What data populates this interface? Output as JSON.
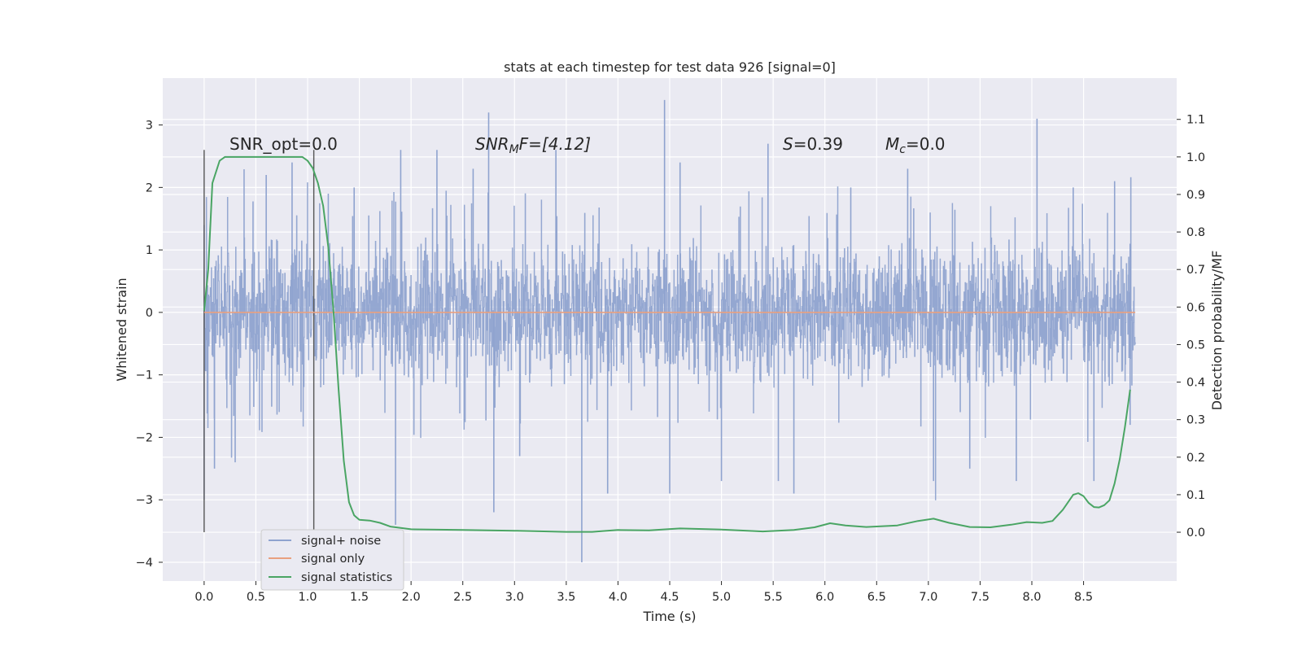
{
  "chart_data": {
    "type": "line",
    "title": "stats at each timestep for test data 926 [signal=0]",
    "xlabel": "Time (s)",
    "ylabel": "Whitened strain",
    "y2label": "Detection probability/MF",
    "xlim": [
      -0.4,
      9.4
    ],
    "ylim": [
      -4.3,
      3.75
    ],
    "y2lim": [
      -0.13,
      1.21
    ],
    "x_ticks": [
      "0.0",
      "0.5",
      "1.0",
      "1.5",
      "2.0",
      "2.5",
      "3.0",
      "3.5",
      "4.0",
      "4.5",
      "5.0",
      "5.5",
      "6.0",
      "6.5",
      "7.0",
      "7.5",
      "8.0",
      "8.5"
    ],
    "y_ticks": [
      "3",
      "2",
      "1",
      "0",
      "−1",
      "−2",
      "−3",
      "−4"
    ],
    "y2_ticks": [
      "1.1",
      "1.0",
      "0.9",
      "0.8",
      "0.7",
      "0.6",
      "0.5",
      "0.4",
      "0.3",
      "0.2",
      "0.1",
      "0.0"
    ],
    "grid": true,
    "legend_position": "lower-left",
    "annotations": {
      "snr_opt": "SNR_opt=0.0",
      "snr_mf_main": "SNR",
      "snr_mf_sub": "M",
      "snr_mf_tail": "F=[4.12]",
      "s_label": "S",
      "s_value": "=0.39",
      "mc_main": "M",
      "mc_sub": "c",
      "mc_value": "=0.0"
    },
    "vertical_markers": [
      0.0,
      1.06
    ],
    "series": [
      {
        "name": "signal+ noise",
        "color": "#8fa3cf",
        "style": "dense noise trace, roughly ±1 with excursions between about −4 and 3.4",
        "samples": [
          [
            0.0,
            1.4
          ],
          [
            0.0,
            -3.0
          ],
          [
            0.1,
            -2.5
          ],
          [
            0.3,
            -2.4
          ],
          [
            0.6,
            2.2
          ],
          [
            0.85,
            2.4
          ],
          [
            1.2,
            1.9
          ],
          [
            1.45,
            2.0
          ],
          [
            1.85,
            -3.4
          ],
          [
            1.9,
            2.6
          ],
          [
            2.25,
            2.6
          ],
          [
            2.6,
            2.3
          ],
          [
            2.75,
            3.2
          ],
          [
            2.8,
            -3.2
          ],
          [
            3.05,
            -2.3
          ],
          [
            3.4,
            2.6
          ],
          [
            3.65,
            -4.0
          ],
          [
            3.9,
            -2.9
          ],
          [
            4.45,
            3.4
          ],
          [
            4.5,
            -2.9
          ],
          [
            4.6,
            2.4
          ],
          [
            5.0,
            -2.7
          ],
          [
            5.45,
            2.7
          ],
          [
            5.55,
            -2.7
          ],
          [
            5.7,
            -2.9
          ],
          [
            6.25,
            2.0
          ],
          [
            6.8,
            2.3
          ],
          [
            7.05,
            -2.7
          ],
          [
            7.4,
            -2.5
          ],
          [
            7.85,
            -2.7
          ],
          [
            8.05,
            3.1
          ],
          [
            8.4,
            2.0
          ],
          [
            8.6,
            -2.7
          ],
          [
            8.8,
            2.1
          ],
          [
            8.95,
            1.1
          ],
          [
            8.95,
            -1.8
          ]
        ]
      },
      {
        "name": "signal only",
        "color": "#e9a07f",
        "points": [
          [
            0.0,
            0.0
          ],
          [
            9.0,
            0.0
          ]
        ]
      },
      {
        "name": "signal statistics",
        "color": "#4aa564",
        "axis": "right",
        "points": [
          [
            0.0,
            0.59
          ],
          [
            0.04,
            0.7
          ],
          [
            0.08,
            0.93
          ],
          [
            0.15,
            0.99
          ],
          [
            0.2,
            1.0
          ],
          [
            0.5,
            1.0
          ],
          [
            0.8,
            1.0
          ],
          [
            0.95,
            1.0
          ],
          [
            1.0,
            0.99
          ],
          [
            1.05,
            0.97
          ],
          [
            1.1,
            0.93
          ],
          [
            1.15,
            0.87
          ],
          [
            1.2,
            0.76
          ],
          [
            1.25,
            0.59
          ],
          [
            1.3,
            0.38
          ],
          [
            1.35,
            0.19
          ],
          [
            1.4,
            0.08
          ],
          [
            1.45,
            0.045
          ],
          [
            1.5,
            0.033
          ],
          [
            1.6,
            0.031
          ],
          [
            1.7,
            0.025
          ],
          [
            1.8,
            0.015
          ],
          [
            2.0,
            0.008
          ],
          [
            2.5,
            0.006
          ],
          [
            3.0,
            0.004
          ],
          [
            3.5,
            0.001
          ],
          [
            3.75,
            0.001
          ],
          [
            4.0,
            0.006
          ],
          [
            4.3,
            0.005
          ],
          [
            4.6,
            0.01
          ],
          [
            5.0,
            0.007
          ],
          [
            5.4,
            0.002
          ],
          [
            5.7,
            0.006
          ],
          [
            5.9,
            0.013
          ],
          [
            6.05,
            0.024
          ],
          [
            6.2,
            0.018
          ],
          [
            6.4,
            0.014
          ],
          [
            6.7,
            0.018
          ],
          [
            6.9,
            0.03
          ],
          [
            7.05,
            0.036
          ],
          [
            7.2,
            0.025
          ],
          [
            7.4,
            0.014
          ],
          [
            7.6,
            0.013
          ],
          [
            7.8,
            0.02
          ],
          [
            7.95,
            0.027
          ],
          [
            8.1,
            0.025
          ],
          [
            8.2,
            0.03
          ],
          [
            8.3,
            0.06
          ],
          [
            8.4,
            0.1
          ],
          [
            8.45,
            0.104
          ],
          [
            8.5,
            0.096
          ],
          [
            8.55,
            0.078
          ],
          [
            8.6,
            0.067
          ],
          [
            8.65,
            0.066
          ],
          [
            8.7,
            0.072
          ],
          [
            8.75,
            0.085
          ],
          [
            8.8,
            0.13
          ],
          [
            8.85,
            0.195
          ],
          [
            8.9,
            0.28
          ],
          [
            8.95,
            0.38
          ]
        ]
      }
    ]
  }
}
